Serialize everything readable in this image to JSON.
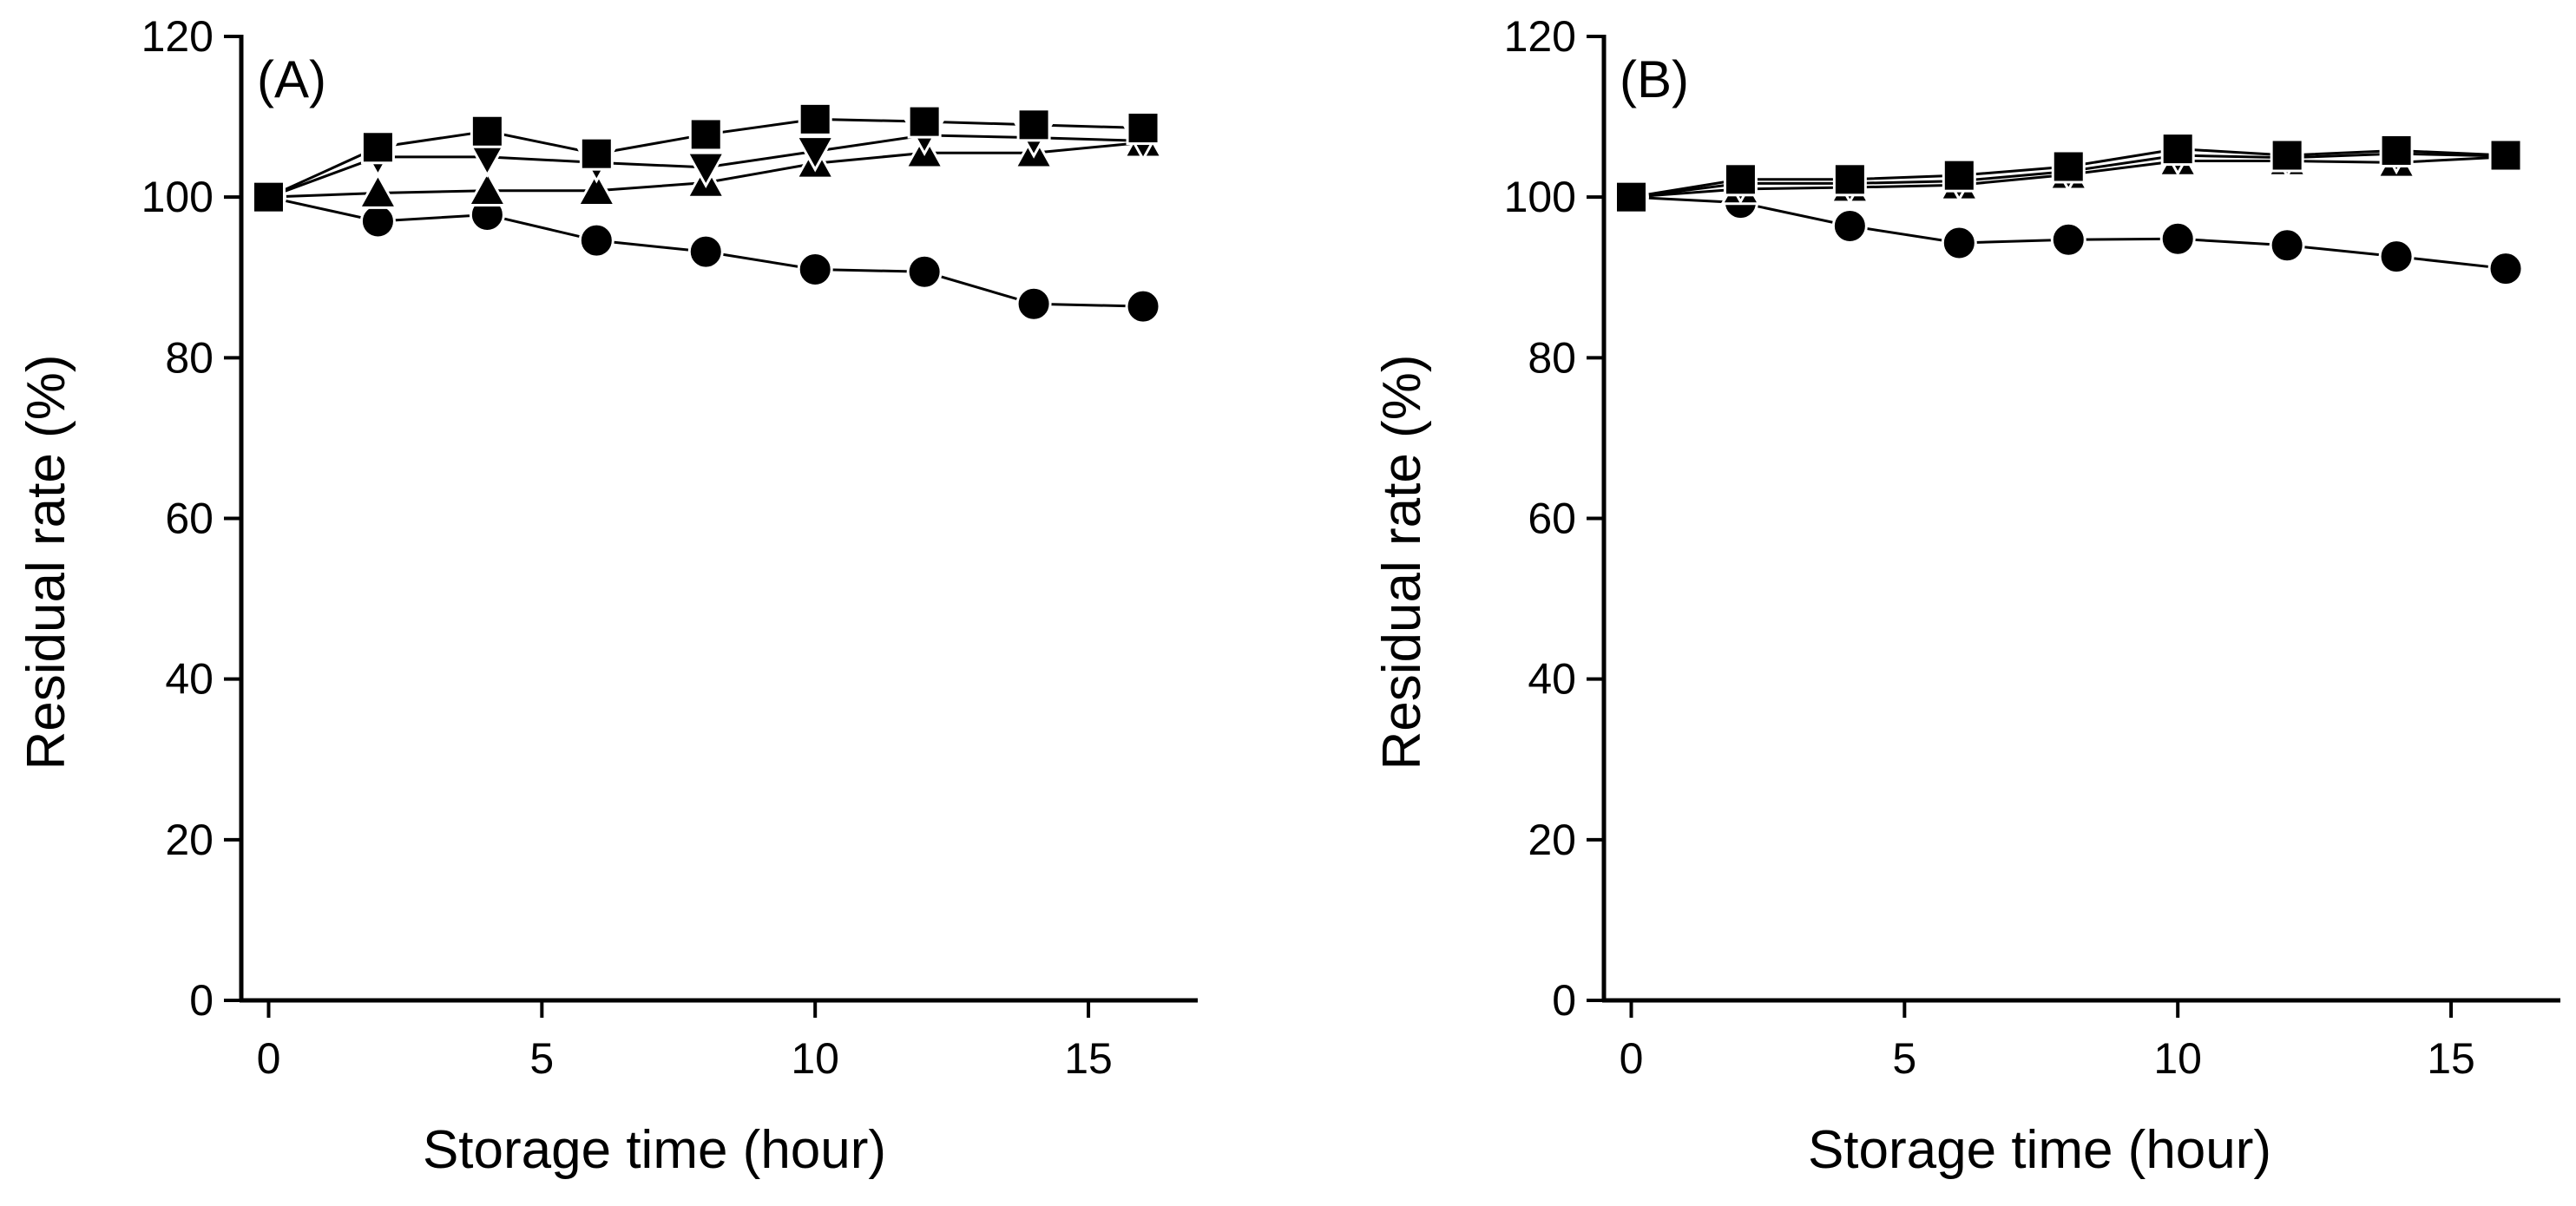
{
  "chart_data": [
    {
      "type": "line",
      "panel_label": "(A)",
      "xlabel": "Storage time (hour)",
      "ylabel": "Residual rate (%)",
      "xlim": [
        -0.5,
        17.0
      ],
      "ylim": [
        0,
        120
      ],
      "xticks": [
        0,
        5,
        10,
        15
      ],
      "yticks": [
        0,
        20,
        40,
        60,
        80,
        100,
        120
      ],
      "x": [
        0,
        2,
        4,
        6,
        8,
        10,
        12,
        14,
        16
      ],
      "series": [
        {
          "name": "square",
          "marker": "square",
          "values": [
            100,
            106.2,
            108.2,
            105.4,
            107.8,
            109.7,
            109.4,
            109.0,
            108.6
          ]
        },
        {
          "name": "triangle-down",
          "marker": "triangle-down",
          "values": [
            100,
            105.0,
            105.0,
            104.3,
            103.7,
            105.7,
            107.7,
            107.4,
            107.0
          ]
        },
        {
          "name": "triangle-up",
          "marker": "triangle-up",
          "values": [
            100,
            100.5,
            100.8,
            100.8,
            101.8,
            104.2,
            105.5,
            105.5,
            106.8
          ]
        },
        {
          "name": "circle",
          "marker": "circle",
          "values": [
            100,
            97.0,
            97.8,
            94.6,
            93.2,
            91.0,
            90.7,
            86.7,
            86.4
          ]
        }
      ],
      "legend": "none"
    },
    {
      "type": "line",
      "panel_label": "(B)",
      "xlabel": "Storage time (hour)",
      "ylabel": "Residual rate (%)",
      "xlim": [
        -0.5,
        17.0
      ],
      "ylim": [
        0,
        120
      ],
      "xticks": [
        0,
        5,
        10,
        15
      ],
      "yticks": [
        0,
        20,
        40,
        60,
        80,
        100,
        120
      ],
      "x": [
        0,
        2,
        4,
        6,
        8,
        10,
        12,
        14,
        16
      ],
      "series": [
        {
          "name": "square",
          "marker": "square",
          "values": [
            100,
            102.2,
            102.2,
            102.7,
            103.8,
            106.0,
            105.2,
            105.8,
            105.2
          ]
        },
        {
          "name": "triangle-down",
          "marker": "triangle-down",
          "values": [
            100,
            101.7,
            101.7,
            102.0,
            103.2,
            105.2,
            104.9,
            105.4,
            105.1
          ]
        },
        {
          "name": "triangle-up",
          "marker": "triangle-up",
          "values": [
            100,
            101.0,
            101.2,
            101.5,
            102.8,
            104.5,
            104.5,
            104.3,
            105.0
          ]
        },
        {
          "name": "circle",
          "marker": "circle",
          "values": [
            100,
            99.3,
            96.4,
            94.3,
            94.7,
            94.8,
            94.0,
            92.6,
            91.1
          ]
        }
      ],
      "legend": "none"
    }
  ]
}
